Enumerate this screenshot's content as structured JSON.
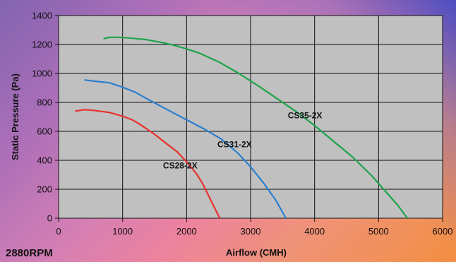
{
  "chart_data": {
    "type": "line",
    "title": "",
    "xlabel": "Airflow (CMH)",
    "ylabel": "Static Pressure (Pa)",
    "xlim": [
      0,
      6000
    ],
    "ylim": [
      0,
      1400
    ],
    "xticks": [
      0,
      1000,
      2000,
      3000,
      4000,
      5000,
      6000
    ],
    "yticks": [
      0,
      200,
      400,
      600,
      800,
      1000,
      1200,
      1400
    ],
    "grid": true,
    "legend": "none",
    "annotation": "2880RPM",
    "plot_background": "#c0c0c0",
    "series": [
      {
        "name": "CS28-2X",
        "color": "#e8302c",
        "points": [
          [
            260,
            740
          ],
          [
            400,
            750
          ],
          [
            550,
            745
          ],
          [
            800,
            730
          ],
          [
            1000,
            705
          ],
          [
            1150,
            680
          ],
          [
            1300,
            640
          ],
          [
            1500,
            580
          ],
          [
            1700,
            510
          ],
          [
            1850,
            460
          ],
          [
            2000,
            390
          ],
          [
            2150,
            310
          ],
          [
            2250,
            240
          ],
          [
            2350,
            150
          ],
          [
            2450,
            60
          ],
          [
            2520,
            0
          ]
        ]
      },
      {
        "name": "CS31-2X",
        "color": "#2a7fd0",
        "points": [
          [
            400,
            955
          ],
          [
            600,
            945
          ],
          [
            800,
            935
          ],
          [
            1000,
            905
          ],
          [
            1200,
            870
          ],
          [
            1400,
            820
          ],
          [
            1700,
            750
          ],
          [
            2000,
            680
          ],
          [
            2300,
            610
          ],
          [
            2550,
            545
          ],
          [
            2800,
            450
          ],
          [
            3000,
            355
          ],
          [
            3200,
            245
          ],
          [
            3400,
            120
          ],
          [
            3550,
            0
          ]
        ]
      },
      {
        "name": "CS35-2X",
        "color": "#1ea34a",
        "points": [
          [
            700,
            1240
          ],
          [
            800,
            1250
          ],
          [
            950,
            1250
          ],
          [
            1100,
            1245
          ],
          [
            1350,
            1235
          ],
          [
            1600,
            1215
          ],
          [
            1800,
            1195
          ],
          [
            2000,
            1170
          ],
          [
            2200,
            1140
          ],
          [
            2500,
            1080
          ],
          [
            2800,
            1005
          ],
          [
            3100,
            920
          ],
          [
            3400,
            830
          ],
          [
            3700,
            740
          ],
          [
            4000,
            640
          ],
          [
            4300,
            530
          ],
          [
            4600,
            420
          ],
          [
            4900,
            290
          ],
          [
            5100,
            190
          ],
          [
            5300,
            90
          ],
          [
            5450,
            0
          ]
        ]
      }
    ]
  }
}
